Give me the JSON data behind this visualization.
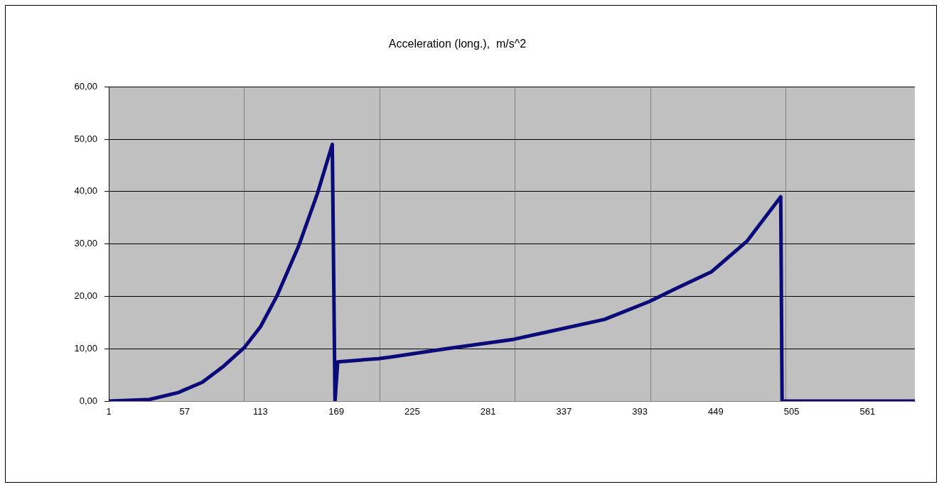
{
  "chart_data": {
    "type": "line",
    "title": "Acceleration (long.),  m/s^2",
    "x": [
      1,
      31,
      52,
      70,
      85,
      101,
      113,
      125,
      141,
      155,
      166,
      168,
      170,
      200,
      209,
      250,
      300,
      367,
      400,
      419,
      446,
      472,
      497,
      498,
      596
    ],
    "series": [
      {
        "color": "#0a0a78",
        "values": [
          0,
          0.3,
          1.6,
          3.6,
          6.5,
          10.2,
          14.2,
          20,
          29.5,
          39.6,
          49,
          0,
          7.5,
          8.1,
          8.4,
          10,
          11.8,
          15.6,
          19,
          21.4,
          24.7,
          30.5,
          39,
          0,
          0
        ]
      }
    ],
    "xlim": [
      1,
      596
    ],
    "xticks": [
      1,
      57,
      {
        "value": 101,
        "label": null
      },
      113,
      169,
      {
        "value": 201,
        "label": null
      },
      225,
      281,
      {
        "value": 301,
        "label": null
      },
      337,
      393,
      {
        "value": 401,
        "label": null
      },
      449,
      {
        "value": 501,
        "label": null
      },
      505,
      561
    ],
    "ylim": [
      0,
      60
    ],
    "yticks": [
      {
        "value": 0,
        "label": "0,00"
      },
      {
        "value": 10,
        "label": "10,00"
      },
      {
        "value": 20,
        "label": "20,00"
      },
      {
        "value": 30,
        "label": "30,00"
      },
      {
        "value": 40,
        "label": "40,00"
      },
      {
        "value": 50,
        "label": "50,00"
      },
      {
        "value": 60,
        "label": "60,00"
      }
    ],
    "grid": true,
    "legend": false
  }
}
